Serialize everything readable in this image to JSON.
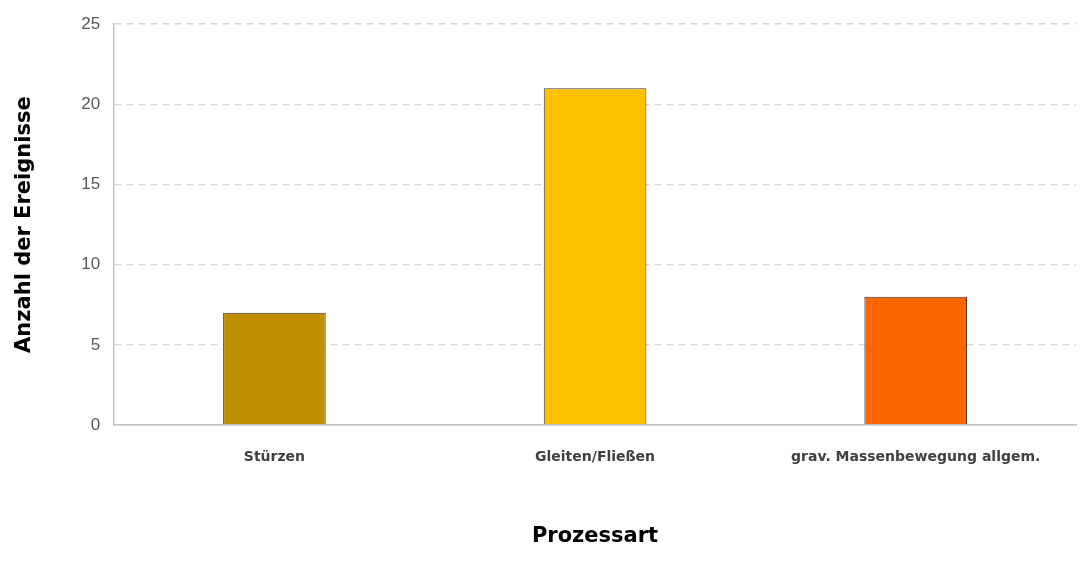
{
  "chart_data": {
    "type": "bar",
    "xlabel": "Prozessart",
    "ylabel": "Anzahl der Ereignisse",
    "categories": [
      "Stürzen",
      "Gleiten/Fließen",
      "grav. Massenbewegung allgem."
    ],
    "values": [
      7,
      21,
      8
    ],
    "colors": [
      "#bf8f00",
      "#ffc000",
      "#ff6600"
    ],
    "ylim": [
      0,
      25
    ],
    "yticks": [
      0,
      5,
      10,
      15,
      20,
      25
    ],
    "grid": "y",
    "legend": false
  }
}
